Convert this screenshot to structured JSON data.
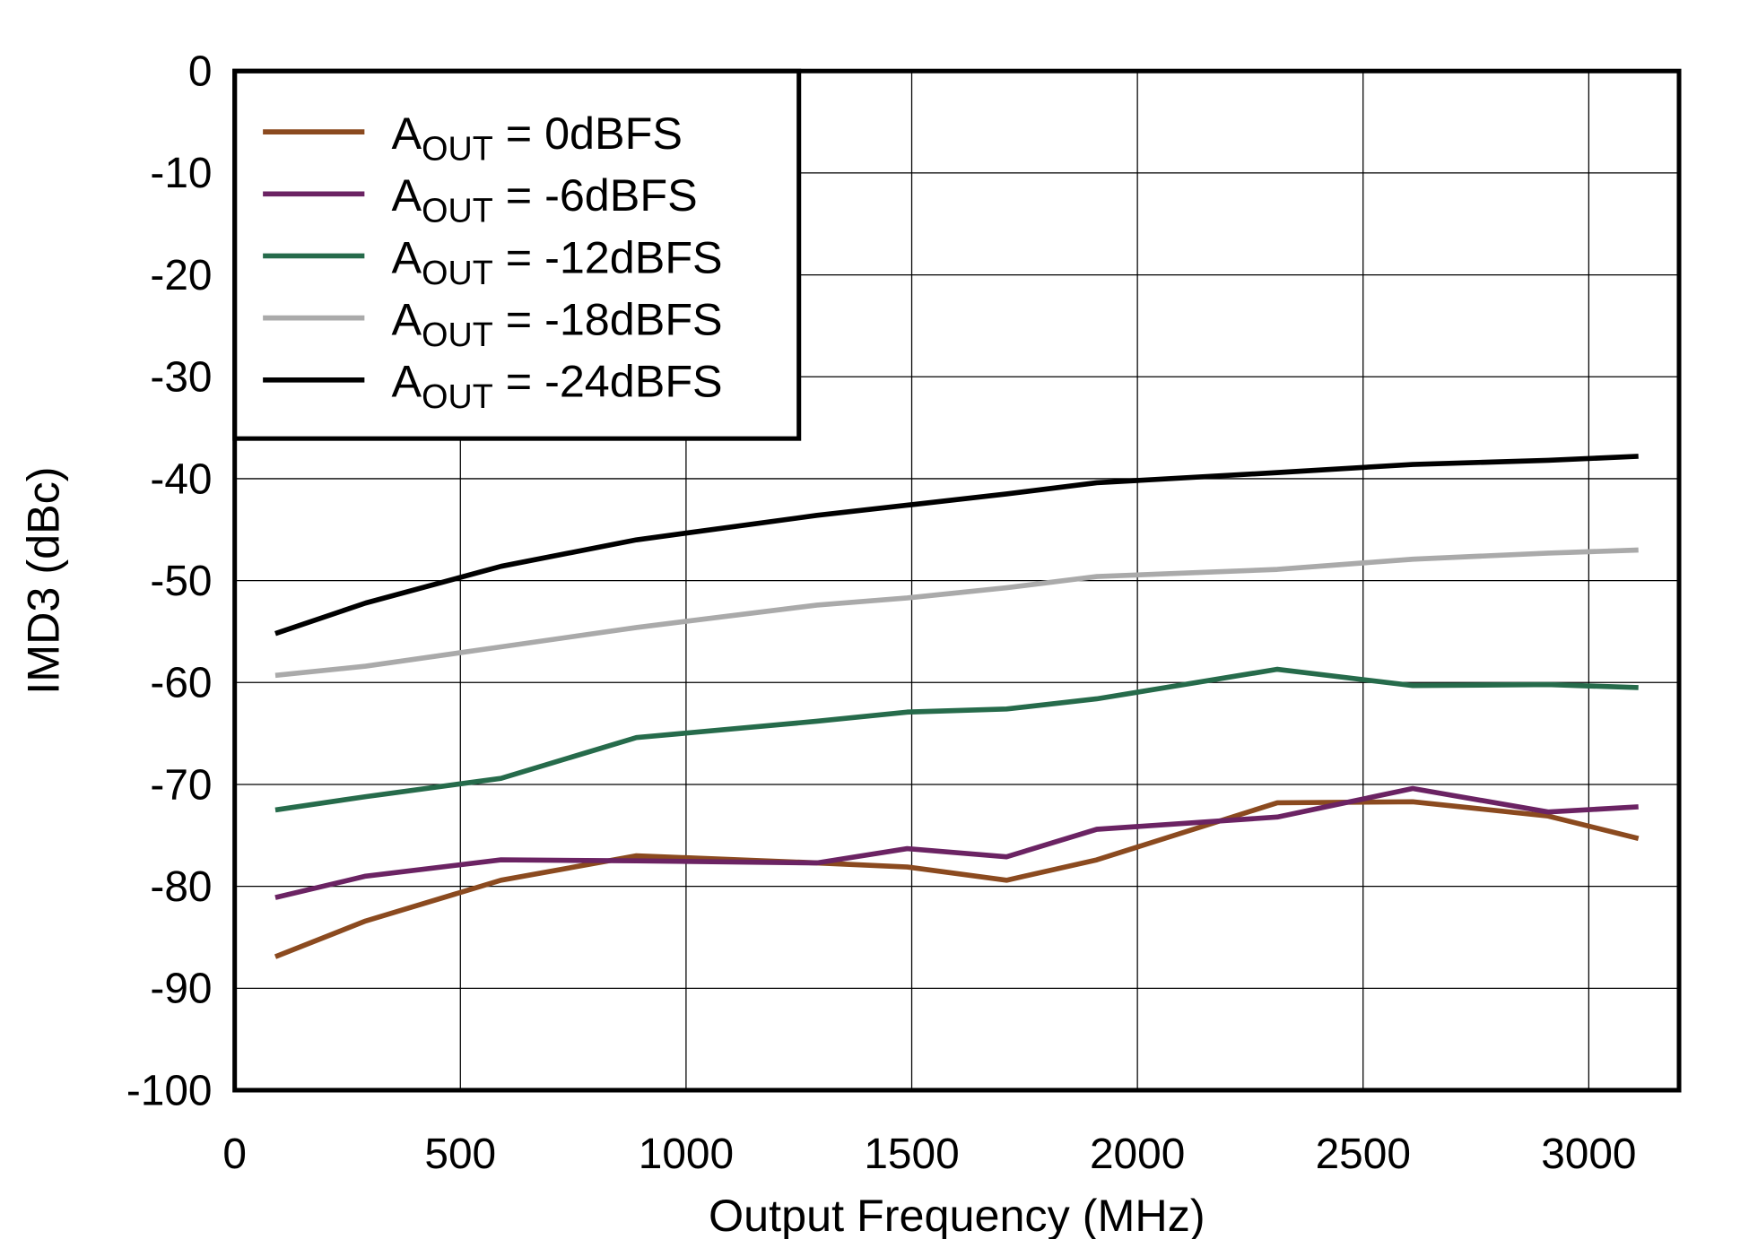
{
  "chart_data": {
    "type": "line",
    "title": "",
    "xlabel": "Output Frequency (MHz)",
    "ylabel": "IMD3 (dBc)",
    "xlim": [
      0,
      3200
    ],
    "ylim": [
      -100,
      0
    ],
    "xticks": [
      0,
      500,
      1000,
      1500,
      2000,
      2500,
      3000
    ],
    "yticks": [
      0,
      -10,
      -20,
      -30,
      -40,
      -50,
      -60,
      -70,
      -80,
      -90,
      -100
    ],
    "grid": true,
    "legend_placement": "top-left",
    "x": [
      90,
      290,
      590,
      890,
      1290,
      1490,
      1710,
      1910,
      2310,
      2610,
      2910,
      3110
    ],
    "series": [
      {
        "name": "AOUT = 0dBFS",
        "name_main": "A",
        "name_sub": "OUT",
        "name_rest": " = 0dBFS",
        "color": "#8B4A1F",
        "values": [
          -86.9,
          -83.4,
          -79.4,
          -77.0,
          -77.7,
          -78.1,
          -79.4,
          -77.4,
          -71.8,
          -71.7,
          -73.1,
          -75.3
        ]
      },
      {
        "name": "AOUT = -6dBFS",
        "name_main": "A",
        "name_sub": "OUT",
        "name_rest": " = -6dBFS",
        "color": "#6B2363",
        "values": [
          -81.1,
          -79.0,
          -77.4,
          -77.5,
          -77.7,
          -76.3,
          -77.1,
          -74.4,
          -73.2,
          -70.4,
          -72.7,
          -72.2
        ]
      },
      {
        "name": "AOUT = -12dBFS",
        "name_main": "A",
        "name_sub": "OUT",
        "name_rest": " = -12dBFS",
        "color": "#266B4B",
        "values": [
          -72.5,
          -71.2,
          -69.4,
          -65.4,
          -63.8,
          -62.9,
          -62.6,
          -61.6,
          -58.7,
          -60.3,
          -60.2,
          -60.5
        ]
      },
      {
        "name": "AOUT = -18dBFS",
        "name_main": "A",
        "name_sub": "OUT",
        "name_rest": " = -18dBFS",
        "color": "#AAAAAA",
        "values": [
          -59.3,
          -58.4,
          -56.5,
          -54.6,
          -52.4,
          -51.7,
          -50.7,
          -49.6,
          -48.9,
          -47.9,
          -47.3,
          -47.0
        ]
      },
      {
        "name": "AOUT = -24dBFS",
        "name_main": "A",
        "name_sub": "OUT",
        "name_rest": " = -24dBFS",
        "color": "#000000",
        "values": [
          -55.2,
          -52.2,
          -48.6,
          -46.0,
          -43.6,
          -42.6,
          -41.5,
          -40.4,
          -39.4,
          -38.6,
          -38.2,
          -37.8
        ]
      }
    ]
  }
}
